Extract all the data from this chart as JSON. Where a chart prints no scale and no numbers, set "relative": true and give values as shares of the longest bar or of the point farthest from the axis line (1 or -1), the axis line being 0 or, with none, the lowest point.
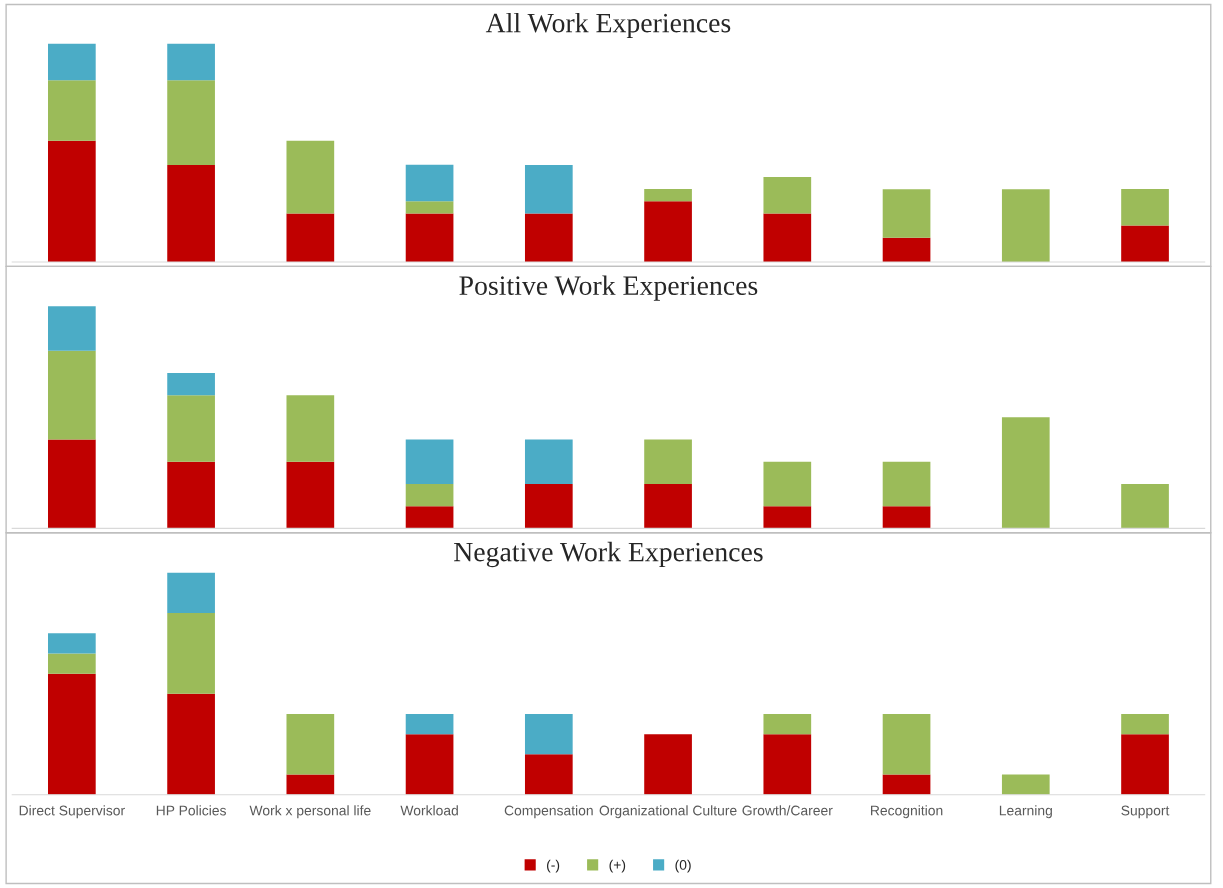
{
  "chart_data": [
    {
      "type": "bar",
      "title": "All Work Experiences",
      "relative": true,
      "stacked": true,
      "tick_labels": false,
      "categories": [
        null,
        null,
        null,
        null,
        null,
        null,
        null,
        null,
        null,
        null
      ],
      "series": [
        {
          "color": "#c00000",
          "values": [
            0.555,
            0.444,
            0.222,
            0.222,
            0.222,
            0.278,
            0.222,
            0.111,
            null,
            0.167
          ]
        },
        {
          "color": "#9bbb59",
          "values": [
            0.278,
            0.389,
            0.333,
            0.056,
            null,
            0.056,
            0.167,
            0.222,
            0.333,
            0.167
          ]
        },
        {
          "color": "#4bacc6",
          "values": [
            0.167,
            0.167,
            null,
            0.167,
            0.222,
            null,
            null,
            null,
            null,
            null
          ]
        }
      ]
    },
    {
      "type": "bar",
      "title": "Positive Work Experiences",
      "relative": true,
      "stacked": true,
      "tick_labels": false,
      "categories": [
        null,
        null,
        null,
        null,
        null,
        null,
        null,
        null,
        null,
        null
      ],
      "series": [
        {
          "color": "#c00000",
          "values": [
            0.4,
            0.3,
            0.3,
            0.1,
            0.2,
            0.2,
            0.1,
            0.1,
            null,
            null
          ]
        },
        {
          "color": "#9bbb59",
          "values": [
            0.4,
            0.3,
            0.3,
            0.1,
            null,
            0.2,
            0.2,
            0.2,
            0.5,
            0.2
          ]
        },
        {
          "color": "#4bacc6",
          "values": [
            0.2,
            0.1,
            null,
            0.2,
            0.2,
            null,
            null,
            null,
            null,
            null
          ]
        }
      ]
    },
    {
      "type": "bar",
      "title": "Negative Work Experiences",
      "relative": true,
      "stacked": true,
      "tick_labels": "x",
      "legend": "bottom",
      "categories": [
        "Direct Supervisor",
        "HP Policies",
        "Work x personal life",
        "Workload",
        "Compensation",
        "Organizational Culture",
        "Growth/Career",
        "Recognition",
        "Learning",
        "Support"
      ],
      "series": [
        {
          "name": "(-)",
          "color": "#c00000",
          "values": [
            0.545,
            0.455,
            0.091,
            0.273,
            0.182,
            0.273,
            0.273,
            0.091,
            null,
            0.273
          ]
        },
        {
          "name": "(+)",
          "color": "#9bbb59",
          "values": [
            0.091,
            0.364,
            0.273,
            null,
            null,
            null,
            0.091,
            0.273,
            0.091,
            0.091
          ]
        },
        {
          "name": "(0)",
          "color": "#4bacc6",
          "values": [
            0.091,
            0.181,
            null,
            0.091,
            0.182,
            null,
            null,
            null,
            null,
            null
          ]
        }
      ]
    }
  ]
}
